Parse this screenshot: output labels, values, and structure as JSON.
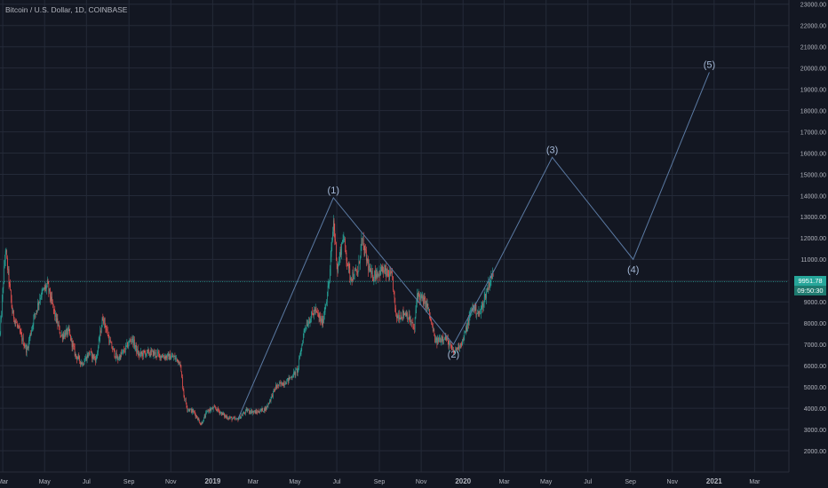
{
  "title": "Bitcoin / U.S. Dollar, 1D, COINBASE",
  "colors": {
    "background": "#131722",
    "grid": "#242a38",
    "axis_text": "#b2b5be",
    "up": "#26a69a",
    "down": "#ef5350",
    "wave": "#5b7aa3",
    "wave_label": "#a4b8d6",
    "current_price_line": "#26a69a"
  },
  "current_price": {
    "label": "9951.78",
    "value": 9951.78
  },
  "countdown": "09:50:30",
  "chart_data": {
    "type": "candlestick",
    "title": "Bitcoin / U.S. Dollar, 1D, COINBASE",
    "xlabel": "",
    "ylabel": "",
    "y_ticks": [
      2000,
      3000,
      4000,
      5000,
      6000,
      7000,
      8000,
      9000,
      10000,
      11000,
      12000,
      13000,
      14000,
      15000,
      16000,
      17000,
      18000,
      19000,
      20000,
      21000,
      22000,
      23000
    ],
    "y_tick_labels": [
      "2000.00",
      "3000.00",
      "4000.00",
      "5000.00",
      "6000.00",
      "7000.00",
      "8000.00",
      "9000.00",
      "10000.00",
      "11000.00",
      "12000.00",
      "13000.00",
      "14000.00",
      "15000.00",
      "16000.00",
      "17000.00",
      "18000.00",
      "19000.00",
      "20000.00",
      "21000.00",
      "22000.00",
      "23000.00"
    ],
    "ylim": [
      1000,
      23200
    ],
    "xlim": [
      "2018-02-25",
      "2021-04-20"
    ],
    "x_ticks": [
      {
        "date": "2018-03-01",
        "label": "Mar",
        "bold": false
      },
      {
        "date": "2018-05-01",
        "label": "May",
        "bold": false
      },
      {
        "date": "2018-07-01",
        "label": "Jul",
        "bold": false
      },
      {
        "date": "2018-09-01",
        "label": "Sep",
        "bold": false
      },
      {
        "date": "2018-11-01",
        "label": "Nov",
        "bold": false
      },
      {
        "date": "2019-01-01",
        "label": "2019",
        "bold": true
      },
      {
        "date": "2019-03-01",
        "label": "Mar",
        "bold": false
      },
      {
        "date": "2019-05-01",
        "label": "May",
        "bold": false
      },
      {
        "date": "2019-07-01",
        "label": "Jul",
        "bold": false
      },
      {
        "date": "2019-09-01",
        "label": "Sep",
        "bold": false
      },
      {
        "date": "2019-11-01",
        "label": "Nov",
        "bold": false
      },
      {
        "date": "2020-01-01",
        "label": "2020",
        "bold": true
      },
      {
        "date": "2020-03-01",
        "label": "Mar",
        "bold": false
      },
      {
        "date": "2020-05-01",
        "label": "May",
        "bold": false
      },
      {
        "date": "2020-07-01",
        "label": "Jul",
        "bold": false
      },
      {
        "date": "2020-09-01",
        "label": "Sep",
        "bold": false
      },
      {
        "date": "2020-11-01",
        "label": "Nov",
        "bold": false
      },
      {
        "date": "2021-01-01",
        "label": "2021",
        "bold": true
      },
      {
        "date": "2021-03-01",
        "label": "Mar",
        "bold": false
      }
    ],
    "price_path": [
      {
        "date": "2018-02-25",
        "price": 7500
      },
      {
        "date": "2018-03-05",
        "price": 11500
      },
      {
        "date": "2018-03-15",
        "price": 8500
      },
      {
        "date": "2018-03-25",
        "price": 7600
      },
      {
        "date": "2018-04-05",
        "price": 6700
      },
      {
        "date": "2018-04-15",
        "price": 8200
      },
      {
        "date": "2018-04-25",
        "price": 9300
      },
      {
        "date": "2018-05-05",
        "price": 9800
      },
      {
        "date": "2018-05-15",
        "price": 8500
      },
      {
        "date": "2018-05-25",
        "price": 7400
      },
      {
        "date": "2018-06-05",
        "price": 7600
      },
      {
        "date": "2018-06-15",
        "price": 6500
      },
      {
        "date": "2018-06-25",
        "price": 6100
      },
      {
        "date": "2018-07-05",
        "price": 6600
      },
      {
        "date": "2018-07-15",
        "price": 6300
      },
      {
        "date": "2018-07-25",
        "price": 8300
      },
      {
        "date": "2018-08-05",
        "price": 7000
      },
      {
        "date": "2018-08-15",
        "price": 6300
      },
      {
        "date": "2018-08-25",
        "price": 6700
      },
      {
        "date": "2018-09-05",
        "price": 7300
      },
      {
        "date": "2018-09-15",
        "price": 6500
      },
      {
        "date": "2018-09-25",
        "price": 6600
      },
      {
        "date": "2018-10-05",
        "price": 6600
      },
      {
        "date": "2018-10-20",
        "price": 6450
      },
      {
        "date": "2018-11-05",
        "price": 6400
      },
      {
        "date": "2018-11-14",
        "price": 6200
      },
      {
        "date": "2018-11-20",
        "price": 4600
      },
      {
        "date": "2018-11-25",
        "price": 4000
      },
      {
        "date": "2018-12-05",
        "price": 3800
      },
      {
        "date": "2018-12-15",
        "price": 3250
      },
      {
        "date": "2018-12-25",
        "price": 3900
      },
      {
        "date": "2019-01-05",
        "price": 4000
      },
      {
        "date": "2019-01-20",
        "price": 3600
      },
      {
        "date": "2019-02-05",
        "price": 3450
      },
      {
        "date": "2019-02-20",
        "price": 3900
      },
      {
        "date": "2019-03-05",
        "price": 3800
      },
      {
        "date": "2019-03-20",
        "price": 4000
      },
      {
        "date": "2019-04-03",
        "price": 5000
      },
      {
        "date": "2019-04-20",
        "price": 5300
      },
      {
        "date": "2019-05-05",
        "price": 5800
      },
      {
        "date": "2019-05-15",
        "price": 7800
      },
      {
        "date": "2019-05-30",
        "price": 8600
      },
      {
        "date": "2019-06-10",
        "price": 8000
      },
      {
        "date": "2019-06-20",
        "price": 10000
      },
      {
        "date": "2019-06-26",
        "price": 12800
      },
      {
        "date": "2019-07-02",
        "price": 10500
      },
      {
        "date": "2019-07-10",
        "price": 12100
      },
      {
        "date": "2019-07-20",
        "price": 10200
      },
      {
        "date": "2019-08-01",
        "price": 10400
      },
      {
        "date": "2019-08-06",
        "price": 11900
      },
      {
        "date": "2019-08-20",
        "price": 10200
      },
      {
        "date": "2019-09-05",
        "price": 10500
      },
      {
        "date": "2019-09-20",
        "price": 10100
      },
      {
        "date": "2019-09-25",
        "price": 8300
      },
      {
        "date": "2019-10-10",
        "price": 8500
      },
      {
        "date": "2019-10-22",
        "price": 7700
      },
      {
        "date": "2019-10-26",
        "price": 9400
      },
      {
        "date": "2019-11-10",
        "price": 8800
      },
      {
        "date": "2019-11-22",
        "price": 7100
      },
      {
        "date": "2019-12-05",
        "price": 7400
      },
      {
        "date": "2019-12-18",
        "price": 6600
      },
      {
        "date": "2020-01-01",
        "price": 7200
      },
      {
        "date": "2020-01-15",
        "price": 8800
      },
      {
        "date": "2020-01-25",
        "price": 8400
      },
      {
        "date": "2020-02-08",
        "price": 9900
      },
      {
        "date": "2020-02-12",
        "price": 10250
      },
      {
        "date": "2020-02-14",
        "price": 10150
      }
    ],
    "wave_points": [
      {
        "label": "",
        "date": "2019-02-07",
        "price": 3500
      },
      {
        "label": "(1)",
        "date": "2019-06-26",
        "price": 13900
      },
      {
        "label": "(2)",
        "date": "2019-12-18",
        "price": 7000
      },
      {
        "label": "",
        "date": "2020-02-14",
        "price": 10400
      },
      {
        "label": "(3)",
        "date": "2020-05-10",
        "price": 15800
      },
      {
        "label": "(4)",
        "date": "2020-09-05",
        "price": 11000
      },
      {
        "label": "(5)",
        "date": "2020-12-25",
        "price": 19800
      }
    ]
  }
}
